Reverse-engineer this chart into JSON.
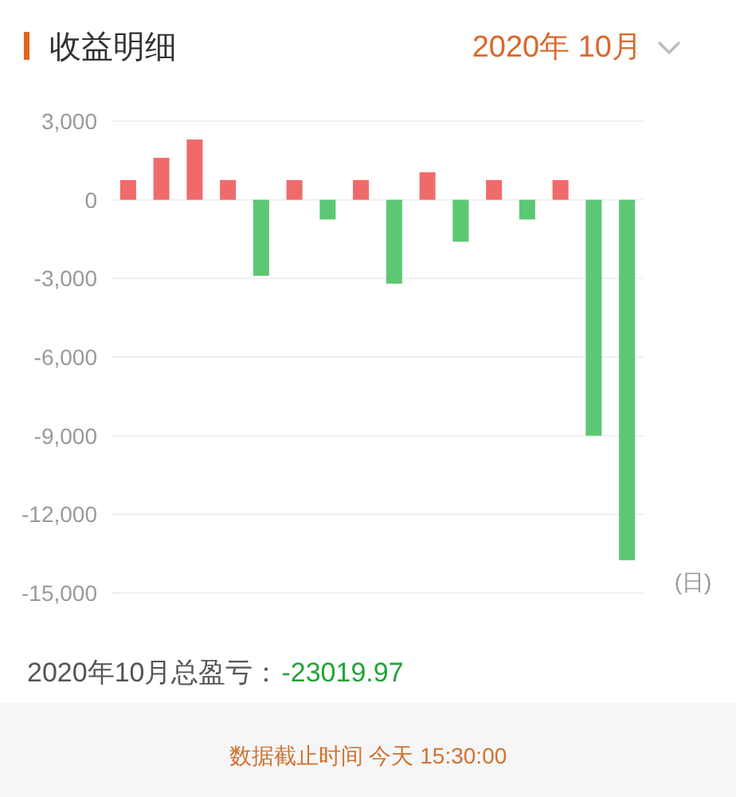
{
  "chart_data": {
    "type": "bar",
    "title": "收益明细",
    "subtitle": "2020年 10月",
    "xlabel": "(日)",
    "categories": [
      null,
      null,
      null,
      null,
      null,
      null,
      null,
      null,
      null,
      null,
      null,
      null,
      null,
      null,
      null,
      null
    ],
    "values": [
      750,
      1600,
      2300,
      750,
      -2900,
      750,
      -750,
      750,
      -3200,
      1050,
      -1600,
      750,
      -750,
      750,
      -9000,
      -13750
    ],
    "colors": [
      "#ef6b6b",
      "#ef6b6b",
      "#ef6b6b",
      "#ef6b6b",
      "#5cc874",
      "#ef6b6b",
      "#5cc874",
      "#ef6b6b",
      "#5cc874",
      "#ef6b6b",
      "#5cc874",
      "#ef6b6b",
      "#5cc874",
      "#ef6b6b",
      "#5cc874",
      "#5cc874"
    ],
    "ylim": [
      -15000,
      3000
    ],
    "yticks": [
      {
        "value": 3000,
        "label": "3,000"
      },
      0,
      {
        "value": -3000,
        "label": "-3,000"
      },
      {
        "value": -6000,
        "label": "-6,000"
      },
      {
        "value": -9000,
        "label": "-9,000"
      },
      {
        "value": -12000,
        "label": "-12,000"
      },
      {
        "value": -15000,
        "label": "-15,000"
      }
    ],
    "grid": "y",
    "annotations": [
      "2020年10月总盈亏：",
      "-23019.97",
      "数据截止时间 今天 15:30:00"
    ]
  }
}
